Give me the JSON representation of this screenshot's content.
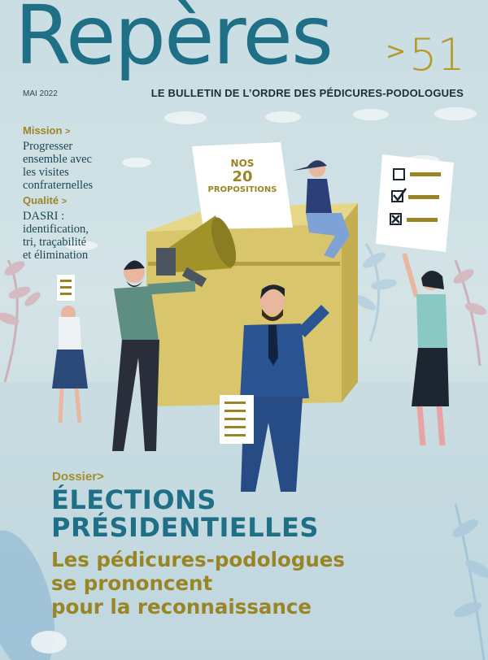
{
  "masthead": {
    "title": "Repères",
    "issue_arrow": ">",
    "issue_number": "51",
    "date": "MAI 2022",
    "subtitle": "LE BULLETIN DE L’ORDRE DES PÉDICURES-PODOLOGUES"
  },
  "sidebar": [
    {
      "heading": "Mission",
      "chevron": ">",
      "lines": [
        "Progresser",
        "ensemble avec",
        "les visites",
        "confraternelles"
      ]
    },
    {
      "heading": "Qualité",
      "chevron": ">",
      "lines": [
        "DASRI :",
        "identification,",
        "tri, traçabilité",
        "et élimination"
      ]
    }
  ],
  "ballot": {
    "line1": "NOS",
    "line2": "20",
    "line3": "PROPOSITIONS"
  },
  "dossier": {
    "label": "Dossier",
    "chevron": ">",
    "headline": [
      "ÉLECTIONS",
      "PRÉSIDENTIELLES"
    ],
    "subhead": [
      "Les pédicures-podologues",
      "se prononcent",
      "pour la reconnaissance"
    ]
  },
  "colors": {
    "teal": "#1f6f86",
    "gold": "#9a8526",
    "box": "#d8c56a",
    "navy": "#2b4a7a"
  }
}
